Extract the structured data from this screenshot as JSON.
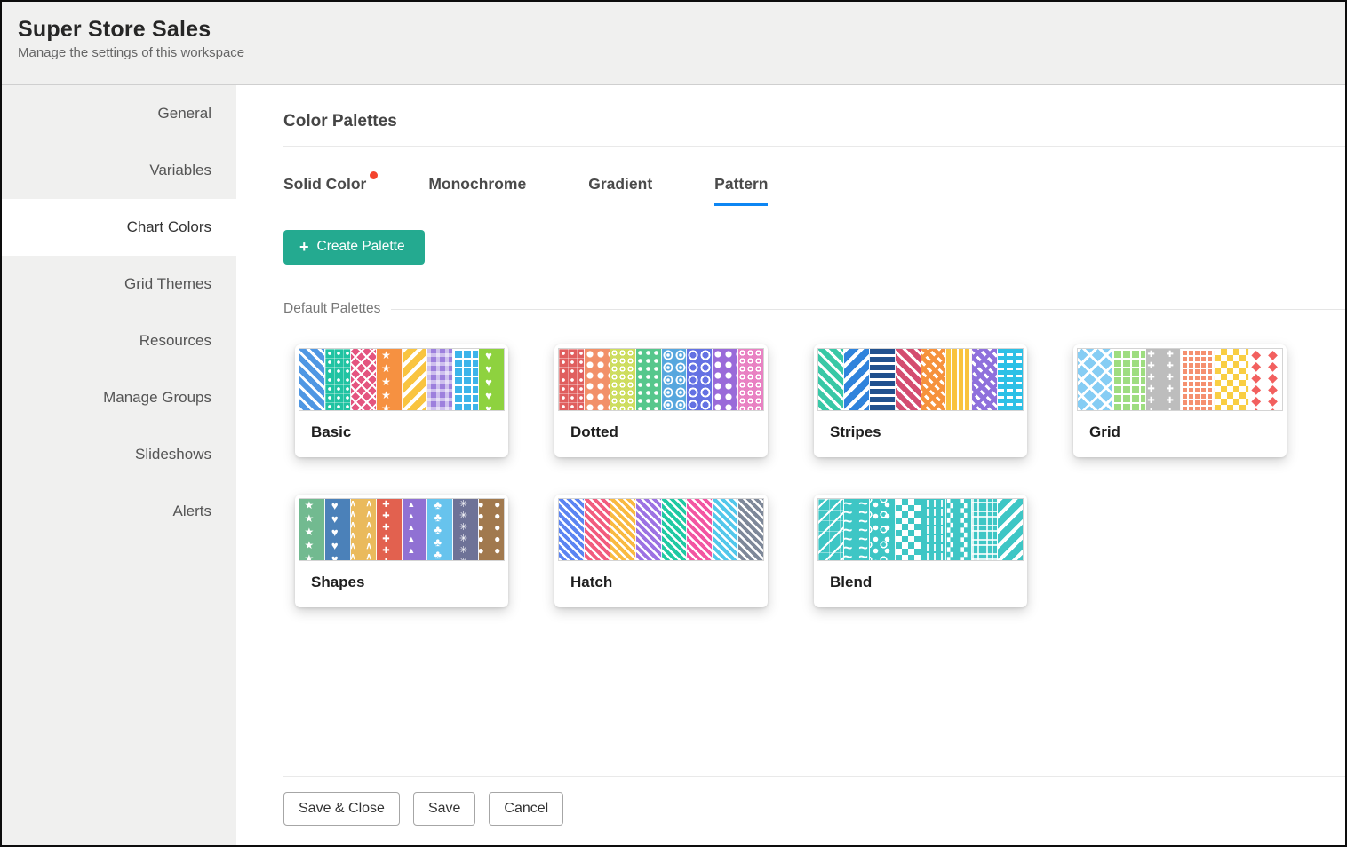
{
  "header": {
    "title": "Super Store Sales",
    "subtitle": "Manage the settings of this workspace"
  },
  "sidebar": {
    "items": [
      {
        "label": "General",
        "active": false
      },
      {
        "label": "Variables",
        "active": false
      },
      {
        "label": "Chart Colors",
        "active": true
      },
      {
        "label": "Grid Themes",
        "active": false
      },
      {
        "label": "Resources",
        "active": false
      },
      {
        "label": "Manage Groups",
        "active": false
      },
      {
        "label": "Slideshows",
        "active": false
      },
      {
        "label": "Alerts",
        "active": false
      }
    ]
  },
  "main": {
    "title": "Color Palettes",
    "tabs": [
      {
        "label": "Solid Color",
        "badge": true,
        "active": false
      },
      {
        "label": "Monochrome",
        "badge": false,
        "active": false
      },
      {
        "label": "Gradient",
        "badge": false,
        "active": false
      },
      {
        "label": "Pattern",
        "badge": false,
        "active": true
      }
    ],
    "create_button": {
      "icon": "+",
      "label": "Create Palette"
    },
    "section_label": "Default Palettes",
    "palettes": [
      {
        "name": "Basic",
        "swatches": [
          {
            "color": "#4f97e3",
            "pattern": "diag"
          },
          {
            "color": "#1fc3a2",
            "pattern": "dot-grid"
          },
          {
            "color": "#e45580",
            "pattern": "crosshatch"
          },
          {
            "color": "#f69141",
            "pattern": "stars"
          },
          {
            "color": "#f9c440",
            "pattern": "diag2"
          },
          {
            "color": "#9d80dd",
            "pattern": "gingham"
          },
          {
            "color": "#3db4ea",
            "pattern": "grid"
          },
          {
            "color": "#8ed23f",
            "pattern": "hearts"
          }
        ]
      },
      {
        "name": "Dotted",
        "swatches": [
          {
            "color": "#e05e5e",
            "pattern": "dot-grid"
          },
          {
            "color": "#f29069",
            "pattern": "dots-lg"
          },
          {
            "color": "#cedd5f",
            "pattern": "rings-sm"
          },
          {
            "color": "#56c78c",
            "pattern": "dots"
          },
          {
            "color": "#57a7de",
            "pattern": "concentric"
          },
          {
            "color": "#6472e3",
            "pattern": "rings-lg"
          },
          {
            "color": "#9a6ad9",
            "pattern": "dots-lg"
          },
          {
            "color": "#e981c3",
            "pattern": "rings-sm"
          }
        ]
      },
      {
        "name": "Stripes",
        "swatches": [
          {
            "color": "#38c8a6",
            "pattern": "diag"
          },
          {
            "color": "#2f83dc",
            "pattern": "diag2"
          },
          {
            "color": "#20508e",
            "pattern": "horizontal"
          },
          {
            "color": "#d44d70",
            "pattern": "diag"
          },
          {
            "color": "#f6923d",
            "pattern": "diag-dash"
          },
          {
            "color": "#f9c33e",
            "pattern": "vertical"
          },
          {
            "color": "#8f70dc",
            "pattern": "diag-dash"
          },
          {
            "color": "#2cc0e6",
            "pattern": "hdash"
          }
        ]
      },
      {
        "name": "Grid",
        "swatches": [
          {
            "color": "#86cdf4",
            "pattern": "lattice"
          },
          {
            "color": "#9edd80",
            "pattern": "grid"
          },
          {
            "color": "#bdbdbd",
            "pattern": "plus"
          },
          {
            "color": "#f5906f",
            "pattern": "grid-sq"
          },
          {
            "color": "#f9ce42",
            "pattern": "checker"
          },
          {
            "color": "#f2605f",
            "pattern": "diamonds"
          }
        ]
      },
      {
        "name": "Shapes",
        "swatches": [
          {
            "color": "#72ba90",
            "pattern": "stars"
          },
          {
            "color": "#4b81b9",
            "pattern": "hearts"
          },
          {
            "color": "#eaba5c",
            "pattern": "chevrons"
          },
          {
            "color": "#e2614f",
            "pattern": "plus"
          },
          {
            "color": "#9071d3",
            "pattern": "triangles"
          },
          {
            "color": "#67c3ed",
            "pattern": "clubs"
          },
          {
            "color": "#6e7297",
            "pattern": "snowflakes"
          },
          {
            "color": "#a1794e",
            "pattern": "blobs"
          }
        ]
      },
      {
        "name": "Hatch",
        "swatches": [
          {
            "color": "#5b84f2",
            "pattern": "hatch"
          },
          {
            "color": "#f25c7e",
            "pattern": "hatch"
          },
          {
            "color": "#f9ba41",
            "pattern": "hatch"
          },
          {
            "color": "#9d72e3",
            "pattern": "hatch"
          },
          {
            "color": "#20c9a3",
            "pattern": "hatch"
          },
          {
            "color": "#f355a2",
            "pattern": "hatch"
          },
          {
            "color": "#52c7eb",
            "pattern": "hatch"
          },
          {
            "color": "#7e8899",
            "pattern": "hatch"
          }
        ]
      },
      {
        "name": "Blend",
        "swatches": [
          {
            "color": "#3ec6c5",
            "pattern": "blend-hatch"
          },
          {
            "color": "#3ec6c5",
            "pattern": "waves"
          },
          {
            "color": "#3ec6c5",
            "pattern": "dots-circles"
          },
          {
            "color": "#3ec6c5",
            "pattern": "checker"
          },
          {
            "color": "#3ec6c5",
            "pattern": "vstripe-dash"
          },
          {
            "color": "#3ec6c5",
            "pattern": "maze"
          },
          {
            "color": "#3ec6c5",
            "pattern": "plaid"
          },
          {
            "color": "#3ec6c5",
            "pattern": "diag2"
          }
        ]
      }
    ],
    "footer_buttons": [
      {
        "label": "Save & Close"
      },
      {
        "label": "Save"
      },
      {
        "label": "Cancel"
      }
    ]
  },
  "colors": {
    "accent_blue": "#0d86f3",
    "badge_red": "#f4442e",
    "button_teal": "#24aa90"
  }
}
